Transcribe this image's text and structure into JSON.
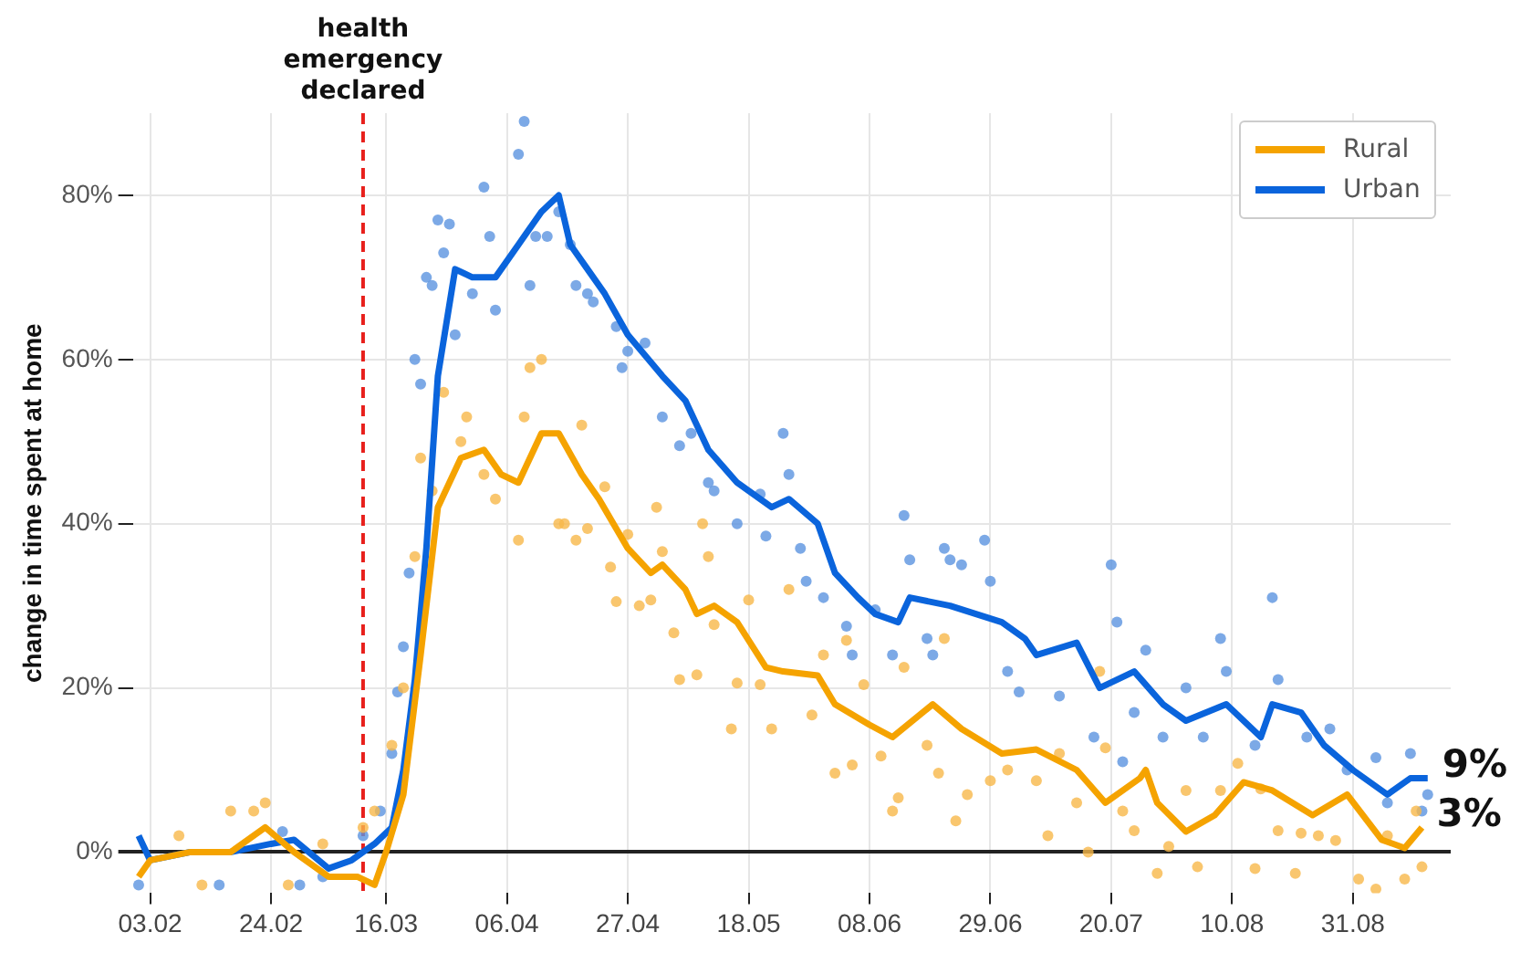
{
  "chart_data": {
    "type": "line",
    "ylabel": "change in time spent at home",
    "xlim": [
      "--01-31",
      "--09-17"
    ],
    "xticks": [
      {
        "value": "--02-03",
        "label": "03.02"
      },
      {
        "value": "--02-24",
        "label": "24.02"
      },
      {
        "value": "--03-16",
        "label": "16.03"
      },
      {
        "value": "--04-06",
        "label": "06.04"
      },
      {
        "value": "--04-27",
        "label": "27.04"
      },
      {
        "value": "--05-18",
        "label": "18.05"
      },
      {
        "value": "--06-08",
        "label": "08.06"
      },
      {
        "value": "--06-29",
        "label": "29.06"
      },
      {
        "value": "--07-20",
        "label": "20.07"
      },
      {
        "value": "--08-10",
        "label": "10.08"
      },
      {
        "value": "--08-31",
        "label": "31.08"
      }
    ],
    "ylim": [
      -5,
      90
    ],
    "yticks": [
      {
        "value": 0,
        "label": "0%"
      },
      {
        "value": 20,
        "label": "20%"
      },
      {
        "value": 40,
        "label": "40%"
      },
      {
        "value": 60,
        "label": "60%"
      },
      {
        "value": 80,
        "label": "80%"
      }
    ],
    "grid": true,
    "legend": "top right",
    "ref_lines": [
      {
        "axis": "x",
        "value": "--03-12",
        "label": "health emergency declared",
        "color": "#e8201c",
        "line_style": "dashed"
      }
    ],
    "annotations": [
      {
        "text": "9%",
        "x": "--09-13",
        "y": 9
      },
      {
        "text": "3%",
        "x": "--09-12",
        "y": 3
      }
    ],
    "series": [
      {
        "type": "scatter",
        "marker": "circle",
        "color": "#f7b84a",
        "x": [
          "--02-08",
          "--02-12",
          "--02-17",
          "--02-21",
          "--02-23",
          "--02-27",
          "--03-05",
          "--03-12",
          "--03-14",
          "--03-17",
          "--03-19",
          "--03-21",
          "--03-22",
          "--03-24",
          "--03-26",
          "--03-29",
          "--03-30",
          "--04-02",
          "--04-04",
          "--04-08",
          "--04-09",
          "--04-10",
          "--04-12",
          "--04-15",
          "--04-16",
          "--04-18",
          "--04-19",
          "--04-20",
          "--04-23",
          "--04-24",
          "--04-25",
          "--04-27",
          "--04-29",
          "--05-01",
          "--05-02",
          "--05-03",
          "--05-05",
          "--05-06",
          "--05-09",
          "--05-10",
          "--05-11",
          "--05-12",
          "--05-15",
          "--05-16",
          "--05-18",
          "--05-20",
          "--05-22",
          "--05-25",
          "--05-29",
          "--05-31",
          "--06-02",
          "--06-04",
          "--06-05",
          "--06-07",
          "--06-10",
          "--06-12",
          "--06-13",
          "--06-14",
          "--06-18",
          "--06-20",
          "--06-21",
          "--06-23",
          "--06-25",
          "--06-29",
          "--07-02",
          "--07-07",
          "--07-09",
          "--07-11",
          "--07-14",
          "--07-16",
          "--07-18",
          "--07-19",
          "--07-22",
          "--07-24",
          "--07-28",
          "--07-30",
          "--08-02",
          "--08-04",
          "--08-08",
          "--08-11",
          "--08-14",
          "--08-15",
          "--08-18",
          "--08-21",
          "--08-22",
          "--08-25",
          "--08-28",
          "--09-01",
          "--09-04",
          "--09-06",
          "--09-09",
          "--09-11",
          "--09-12"
        ],
        "values": [
          2,
          -4,
          5,
          5,
          6,
          -4,
          1,
          3,
          5,
          13,
          20,
          36,
          48,
          44,
          56,
          50,
          53,
          46,
          43,
          38,
          53,
          59,
          60,
          40,
          40,
          38,
          52,
          39.4,
          44.5,
          34.7,
          30.5,
          38.7,
          30,
          30.7,
          42,
          36.6,
          26.7,
          21,
          21.6,
          40,
          36,
          27.7,
          15,
          20.6,
          30.7,
          20.4,
          15,
          32,
          16.7,
          24,
          9.6,
          25.8,
          10.6,
          20.4,
          11.7,
          5,
          6.6,
          22.5,
          13,
          9.6,
          26,
          3.8,
          7,
          8.7,
          10,
          8.7,
          2,
          12,
          6,
          0,
          22,
          12.7,
          5,
          2.6,
          -2.6,
          0.7,
          7.5,
          -1.8,
          7.5,
          10.8,
          -2,
          7.7,
          2.6,
          -2.6,
          2.3,
          2,
          1.4,
          -3.3,
          -4.5,
          2,
          -3.3,
          5,
          -1.8
        ]
      },
      {
        "type": "scatter",
        "marker": "circle",
        "color": "#5b93e0",
        "x": [
          "--02-01",
          "--02-15",
          "--02-26",
          "--03-01",
          "--03-05",
          "--03-12",
          "--03-15",
          "--03-17",
          "--03-18",
          "--03-19",
          "--03-20",
          "--03-21",
          "--03-22",
          "--03-23",
          "--03-24",
          "--03-25",
          "--03-26",
          "--03-27",
          "--03-28",
          "--03-31",
          "--04-02",
          "--04-03",
          "--04-04",
          "--04-08",
          "--04-09",
          "--04-10",
          "--04-11",
          "--04-13",
          "--04-15",
          "--04-17",
          "--04-18",
          "--04-20",
          "--04-21",
          "--04-25",
          "--04-26",
          "--04-27",
          "--04-30",
          "--05-03",
          "--05-06",
          "--05-08",
          "--05-11",
          "--05-12",
          "--05-16",
          "--05-20",
          "--05-21",
          "--05-24",
          "--05-25",
          "--05-27",
          "--05-28",
          "--05-31",
          "--06-04",
          "--06-05",
          "--06-09",
          "--06-12",
          "--06-14",
          "--06-15",
          "--06-18",
          "--06-19",
          "--06-21",
          "--06-22",
          "--06-24",
          "--06-28",
          "--06-29",
          "--07-02",
          "--07-04",
          "--07-11",
          "--07-17",
          "--07-20",
          "--07-21",
          "--07-22",
          "--07-24",
          "--07-26",
          "--07-29",
          "--08-02",
          "--08-05",
          "--08-08",
          "--08-09",
          "--08-14",
          "--08-17",
          "--08-18",
          "--08-23",
          "--08-27",
          "--08-30",
          "--09-04",
          "--09-06",
          "--09-10",
          "--09-12",
          "--09-13"
        ],
        "values": [
          -4,
          -4,
          2.5,
          -4,
          -3,
          2,
          5,
          12,
          19.5,
          25,
          34,
          60,
          57,
          70,
          69,
          77,
          73,
          76.5,
          63,
          68,
          81,
          75,
          66,
          85,
          89,
          69,
          75,
          75,
          78,
          74,
          69,
          68,
          67,
          64,
          59,
          61,
          62,
          53,
          49.5,
          51,
          45,
          44,
          40,
          43.6,
          38.5,
          51,
          46,
          37,
          33,
          31,
          27.5,
          24,
          29.5,
          24,
          41,
          35.6,
          26,
          24,
          37,
          35.6,
          35,
          38,
          33,
          22,
          19.5,
          19,
          14,
          35,
          28,
          11,
          17,
          24.6,
          14,
          20,
          14,
          26,
          22,
          13,
          31,
          21,
          14,
          15,
          10,
          11.5,
          6,
          12,
          5,
          7
        ]
      },
      {
        "name": "Rural",
        "color": "#f5a300",
        "x": [
          "--02-01",
          "--02-03",
          "--02-10",
          "--02-17",
          "--02-23",
          "--02-28",
          "--03-06",
          "--03-11",
          "--03-14",
          "--03-16",
          "--03-19",
          "--03-22",
          "--03-25",
          "--03-29",
          "--04-02",
          "--04-05",
          "--04-08",
          "--04-12",
          "--04-15",
          "--04-19",
          "--04-22",
          "--04-27",
          "--05-01",
          "--05-03",
          "--05-07",
          "--05-09",
          "--05-12",
          "--05-16",
          "--05-21",
          "--05-24",
          "--05-30",
          "--06-02",
          "--06-08",
          "--06-12",
          "--06-19",
          "--06-24",
          "--07-01",
          "--07-07",
          "--07-14",
          "--07-19",
          "--07-25",
          "--07-26",
          "--07-28",
          "--08-02",
          "--08-07",
          "--08-12",
          "--08-17",
          "--08-24",
          "--08-30",
          "--09-05",
          "--09-09",
          "--09-12"
        ],
        "values": [
          -3,
          -1,
          0,
          0,
          3,
          0,
          -3,
          -3,
          -4,
          0,
          7,
          24,
          42,
          48,
          49,
          46,
          45,
          51,
          51,
          46,
          43,
          37,
          34,
          35,
          32,
          29,
          30,
          28,
          22.5,
          22,
          21.5,
          18,
          15.5,
          14,
          18,
          15,
          12,
          12.5,
          10,
          6,
          9,
          10,
          6,
          2.5,
          4.5,
          8.5,
          7.5,
          4.5,
          7,
          1.5,
          0.5,
          3
        ]
      },
      {
        "name": "Urban",
        "color": "#0a64dc",
        "x": [
          "--02-01",
          "--02-03",
          "--02-10",
          "--02-17",
          "--02-24",
          "--02-28",
          "--03-06",
          "--03-10",
          "--03-14",
          "--03-17",
          "--03-19",
          "--03-21",
          "--03-23",
          "--03-25",
          "--03-28",
          "--03-31",
          "--04-04",
          "--04-08",
          "--04-12",
          "--04-15",
          "--04-17",
          "--04-20",
          "--04-23",
          "--04-27",
          "--05-03",
          "--05-07",
          "--05-11",
          "--05-16",
          "--05-22",
          "--05-25",
          "--05-30",
          "--06-02",
          "--06-06",
          "--06-09",
          "--06-13",
          "--06-15",
          "--06-22",
          "--07-01",
          "--07-05",
          "--07-07",
          "--07-14",
          "--07-18",
          "--07-21",
          "--07-24",
          "--07-29",
          "--08-02",
          "--08-09",
          "--08-15",
          "--08-17",
          "--08-22",
          "--08-26",
          "--08-31",
          "--09-06",
          "--09-10",
          "--09-13"
        ],
        "values": [
          2,
          -1,
          0,
          0,
          1,
          1.5,
          -2,
          -1,
          1,
          3,
          10,
          21,
          37,
          58,
          71,
          70,
          70,
          74,
          78,
          80,
          74,
          71,
          68,
          63,
          58,
          55,
          49,
          45,
          42,
          43,
          40,
          34,
          31,
          29,
          28,
          31,
          30,
          28,
          26,
          24,
          25.5,
          20,
          21,
          22,
          18,
          16,
          18,
          14,
          18,
          17,
          13,
          10,
          7,
          9,
          9
        ]
      }
    ]
  }
}
